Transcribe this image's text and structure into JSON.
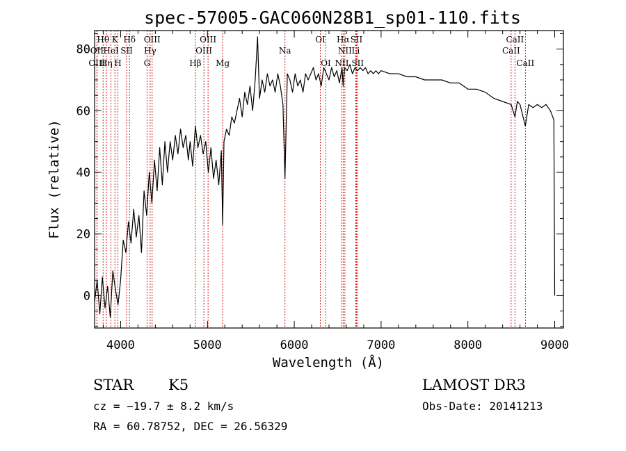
{
  "chart_data": {
    "type": "line",
    "title": "spec-57005-GAC060N28B1_sp01-110.fits",
    "xlabel": "Wavelength (Å)",
    "ylabel": "Flux (relative)",
    "xlim": [
      3700,
      9100
    ],
    "ylim": [
      -10.5,
      86
    ],
    "x_ticks": [
      4000,
      5000,
      6000,
      7000,
      8000,
      9000
    ],
    "y_ticks": [
      0,
      20,
      40,
      60,
      80
    ],
    "grid": false,
    "series": [
      {
        "name": "flux",
        "x": [
          3700,
          3730,
          3760,
          3790,
          3820,
          3850,
          3880,
          3910,
          3940,
          3970,
          4000,
          4030,
          4060,
          4090,
          4120,
          4150,
          4180,
          4210,
          4240,
          4270,
          4300,
          4330,
          4360,
          4390,
          4420,
          4450,
          4480,
          4510,
          4540,
          4570,
          4600,
          4630,
          4660,
          4690,
          4720,
          4750,
          4780,
          4800,
          4830,
          4861,
          4890,
          4920,
          4950,
          4980,
          5010,
          5040,
          5070,
          5100,
          5130,
          5160,
          5175,
          5190,
          5220,
          5250,
          5280,
          5310,
          5340,
          5370,
          5400,
          5430,
          5460,
          5490,
          5520,
          5550,
          5577,
          5600,
          5630,
          5660,
          5690,
          5720,
          5750,
          5780,
          5810,
          5840,
          5870,
          5893,
          5920,
          5950,
          5980,
          6010,
          6040,
          6070,
          6100,
          6130,
          6160,
          6190,
          6220,
          6250,
          6280,
          6310,
          6340,
          6370,
          6400,
          6430,
          6460,
          6490,
          6520,
          6550,
          6563,
          6580,
          6610,
          6640,
          6670,
          6700,
          6730,
          6760,
          6790,
          6820,
          6850,
          6880,
          6910,
          6940,
          6970,
          7000,
          7100,
          7200,
          7300,
          7400,
          7500,
          7600,
          7700,
          7800,
          7900,
          8000,
          8100,
          8200,
          8300,
          8400,
          8498,
          8542,
          8570,
          8600,
          8662,
          8700,
          8750,
          8800,
          8850,
          8900,
          8950,
          8990,
          9000
        ],
        "y": [
          -2,
          5,
          -6,
          6,
          -4,
          3,
          -7,
          8,
          2,
          -3,
          5,
          18,
          14,
          24,
          17,
          28,
          19,
          26,
          14,
          34,
          26,
          40,
          30,
          44,
          34,
          48,
          36,
          50,
          40,
          50,
          44,
          52,
          46,
          54,
          48,
          52,
          44,
          50,
          42,
          55,
          48,
          52,
          46,
          50,
          40,
          48,
          38,
          44,
          36,
          47,
          23,
          50,
          54,
          52,
          58,
          56,
          60,
          64,
          58,
          66,
          62,
          68,
          60,
          70,
          84,
          64,
          70,
          66,
          72,
          68,
          70,
          66,
          72,
          68,
          62,
          38,
          72,
          70,
          66,
          72,
          68,
          70,
          66,
          72,
          70,
          72,
          74,
          70,
          72,
          68,
          74,
          72,
          70,
          74,
          71,
          73,
          69,
          74,
          68,
          74,
          73,
          75,
          72,
          74,
          73,
          74,
          73,
          74,
          72,
          73,
          72,
          73,
          72,
          73,
          72,
          72,
          71,
          71,
          70,
          70,
          70,
          69,
          69,
          67,
          67,
          66,
          64,
          63,
          62,
          58,
          63,
          62,
          55,
          62,
          61,
          62,
          61,
          62,
          60,
          57,
          0
        ]
      }
    ],
    "spectral_lines": [
      {
        "name": "Hθ",
        "wavelength": 3798,
        "row": 1
      },
      {
        "name": "OII",
        "wavelength": 3727,
        "row": 2
      },
      {
        "name": "OIII",
        "wavelength": 3727,
        "row": 3
      },
      {
        "name": "K",
        "wavelength": 3934,
        "row": 1
      },
      {
        "name": "HeI",
        "wavelength": 3889,
        "row": 2
      },
      {
        "name": "Hη",
        "wavelength": 3835,
        "row": 3
      },
      {
        "name": "Hδ",
        "wavelength": 4102,
        "row": 1
      },
      {
        "name": "SII",
        "wavelength": 4069,
        "row": 2
      },
      {
        "name": "H",
        "wavelength": 3968,
        "row": 3
      },
      {
        "name": "OIII",
        "wavelength": 4363,
        "row": 1
      },
      {
        "name": "Hγ",
        "wavelength": 4340,
        "row": 2
      },
      {
        "name": "G",
        "wavelength": 4304,
        "row": 3
      },
      {
        "name": "OIII",
        "wavelength": 5007,
        "row": 1
      },
      {
        "name": "OIII",
        "wavelength": 4959,
        "row": 2
      },
      {
        "name": "Hβ",
        "wavelength": 4861,
        "row": 3
      },
      {
        "name": "Mg",
        "wavelength": 5175,
        "row": 3
      },
      {
        "name": "Na",
        "wavelength": 5893,
        "row": 2
      },
      {
        "name": "OI",
        "wavelength": 6300,
        "row": 1
      },
      {
        "name": "OI",
        "wavelength": 6364,
        "row": 3
      },
      {
        "name": "Hα",
        "wavelength": 6563,
        "row": 1
      },
      {
        "name": "SII",
        "wavelength": 6716,
        "row": 1
      },
      {
        "name": "NII",
        "wavelength": 6583,
        "row": 2
      },
      {
        "name": "Li",
        "wavelength": 6708,
        "row": 2
      },
      {
        "name": "NII",
        "wavelength": 6548,
        "row": 3
      },
      {
        "name": "SII",
        "wavelength": 6731,
        "row": 3
      },
      {
        "name": "CaII",
        "wavelength": 8542,
        "row": 1
      },
      {
        "name": "CaII",
        "wavelength": 8498,
        "row": 2
      },
      {
        "name": "CaII",
        "wavelength": 8662,
        "row": 3
      }
    ]
  },
  "info": {
    "object_class": "STAR",
    "subclass": "K5",
    "survey": "LAMOST DR3",
    "cz": "cz = −19.7 ± 8.2 km/s",
    "obs_date": "Obs-Date: 20141213",
    "coords": "RA =  60.78752, DEC =  26.56329"
  },
  "colors": {
    "line": "#000000",
    "spectral_line": "#cc0000",
    "background": "#ffffff"
  }
}
